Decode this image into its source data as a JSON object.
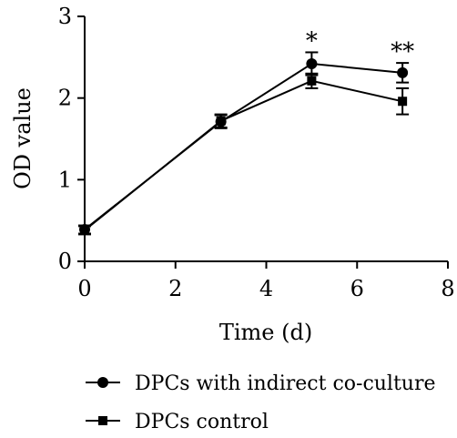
{
  "chart_data": {
    "type": "line",
    "xlabel": "Time (d)",
    "ylabel": "OD value",
    "xlim": [
      0,
      8
    ],
    "ylim": [
      0,
      3
    ],
    "x_ticks": [
      0,
      2,
      4,
      6,
      8
    ],
    "y_ticks": [
      0,
      1,
      2,
      3
    ],
    "grid": false,
    "legend_position": "bottom",
    "series": [
      {
        "name": "DPCs with indirect co-culture",
        "marker": "circle",
        "x": [
          0,
          3,
          5,
          7
        ],
        "values": [
          0.39,
          1.71,
          2.42,
          2.31
        ],
        "error": [
          0.05,
          0.08,
          0.14,
          0.12
        ]
      },
      {
        "name": "DPCs control",
        "marker": "square",
        "x": [
          0,
          3,
          5,
          7
        ],
        "values": [
          0.38,
          1.72,
          2.21,
          1.96
        ],
        "error": [
          0.05,
          0.08,
          0.09,
          0.16
        ]
      }
    ],
    "annotations": [
      {
        "text": "*",
        "x": 5
      },
      {
        "text": "**",
        "x": 7
      }
    ]
  }
}
